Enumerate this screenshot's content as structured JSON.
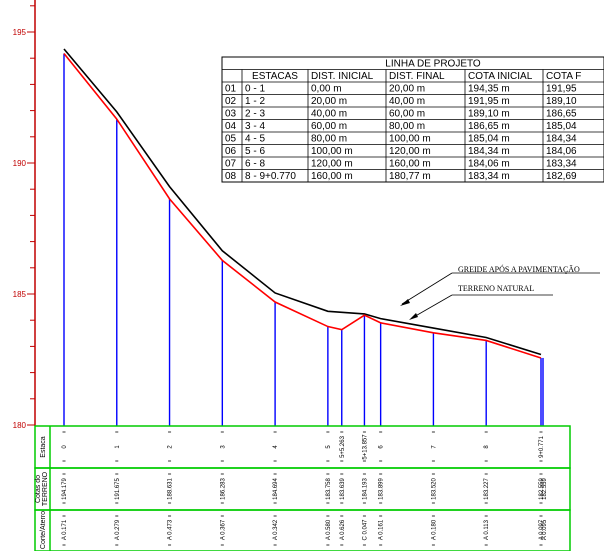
{
  "colors": {
    "axis": "#c00000",
    "natural_ground": "#000000",
    "grade_line": "#ff0000",
    "ordinates": "#0000ff",
    "band_border": "#00cc00"
  },
  "axis": {
    "ticks": [
      "195",
      "190",
      "185",
      "180"
    ],
    "y_range": [
      180,
      196
    ]
  },
  "table": {
    "title": "LINHA DE PROJETO",
    "headers": [
      "",
      "ESTACAS",
      "DIST. INICIAL",
      "DIST. FINAL",
      "COTA INICIAL",
      "COTA F"
    ],
    "rows": [
      [
        "01",
        "0 - 1",
        "0,00 m",
        "20,00 m",
        "194,35 m",
        "191,95"
      ],
      [
        "02",
        "1 - 2",
        "20,00 m",
        "40,00 m",
        "191,95 m",
        "189,10"
      ],
      [
        "03",
        "2 - 3",
        "40,00 m",
        "60,00 m",
        "189,10 m",
        "186,65"
      ],
      [
        "04",
        "3 - 4",
        "60,00 m",
        "80,00 m",
        "186,65 m",
        "185,04"
      ],
      [
        "05",
        "4 - 5",
        "80,00 m",
        "100,00 m",
        "185,04 m",
        "184,34"
      ],
      [
        "06",
        "5 - 6",
        "100,00 m",
        "120,00 m",
        "184,34 m",
        "184,06"
      ],
      [
        "07",
        "6 - 8",
        "120,00 m",
        "160,00 m",
        "184,06 m",
        "183,34"
      ],
      [
        "08",
        "8 - 9+0.770",
        "160,00 m",
        "180,77 m",
        "183,34 m",
        "182,69"
      ]
    ]
  },
  "annotations": {
    "grade": "GREIDE APÓS A PAVIMENTAÇÃO",
    "terrain": "TERRENO NATURAL"
  },
  "bands": {
    "estaca_label": "Estaca",
    "cotas_label_1": "Cotas do",
    "cotas_label_2": "TERRENO",
    "corte_label": "Corte/Aterro"
  },
  "chart_data": {
    "type": "line",
    "title": "",
    "xlabel": "",
    "ylabel": "",
    "ylim": [
      180,
      196
    ],
    "stations": [
      {
        "label": "0",
        "dist": 0,
        "terrain": 194.179,
        "cut_fill": "A 0.171"
      },
      {
        "label": "1",
        "dist": 20,
        "terrain": 191.675,
        "cut_fill": "A 0.279"
      },
      {
        "label": "2",
        "dist": 40,
        "terrain": 188.631,
        "cut_fill": "A 0.473"
      },
      {
        "label": "3",
        "dist": 60,
        "terrain": 186.283,
        "cut_fill": "A 0.367"
      },
      {
        "label": "4",
        "dist": 80,
        "terrain": 184.694,
        "cut_fill": "A 0.342"
      },
      {
        "label": "5",
        "dist": 100,
        "terrain": 183.758,
        "cut_fill": "A 0.580"
      },
      {
        "label": "5+5.263",
        "dist": 105.263,
        "terrain": 183.639,
        "cut_fill": "A 0.626"
      },
      {
        "label": "5+13.857",
        "dist": 113.857,
        "terrain": 184.193,
        "cut_fill": "C 0.047"
      },
      {
        "label": "6",
        "dist": 120,
        "terrain": 183.899,
        "cut_fill": "A 0.161"
      },
      {
        "label": "7",
        "dist": 140,
        "terrain": 183.52,
        "cut_fill": "A 0.180"
      },
      {
        "label": "8",
        "dist": 160,
        "terrain": 183.227,
        "cut_fill": "A 0.113"
      },
      {
        "label": "9+0.771",
        "dist": 180.771,
        "terrain": 182.559,
        "cut_fill": "A 0.097"
      }
    ],
    "extra_marks": {
      "terrain_overlap": "182.559",
      "cut_fill_overlap": "A 0.095"
    },
    "series": [
      {
        "key": "natural",
        "values_by_station": [
          194.35,
          191.95,
          189.1,
          186.65,
          185.04,
          184.34,
          184.3,
          184.24,
          184.06,
          183.7,
          183.34,
          182.69
        ]
      },
      {
        "key": "grade",
        "values_by_station": [
          194.179,
          191.675,
          188.631,
          186.283,
          184.694,
          183.758,
          183.639,
          184.193,
          183.899,
          183.52,
          183.227,
          182.559
        ]
      }
    ]
  }
}
